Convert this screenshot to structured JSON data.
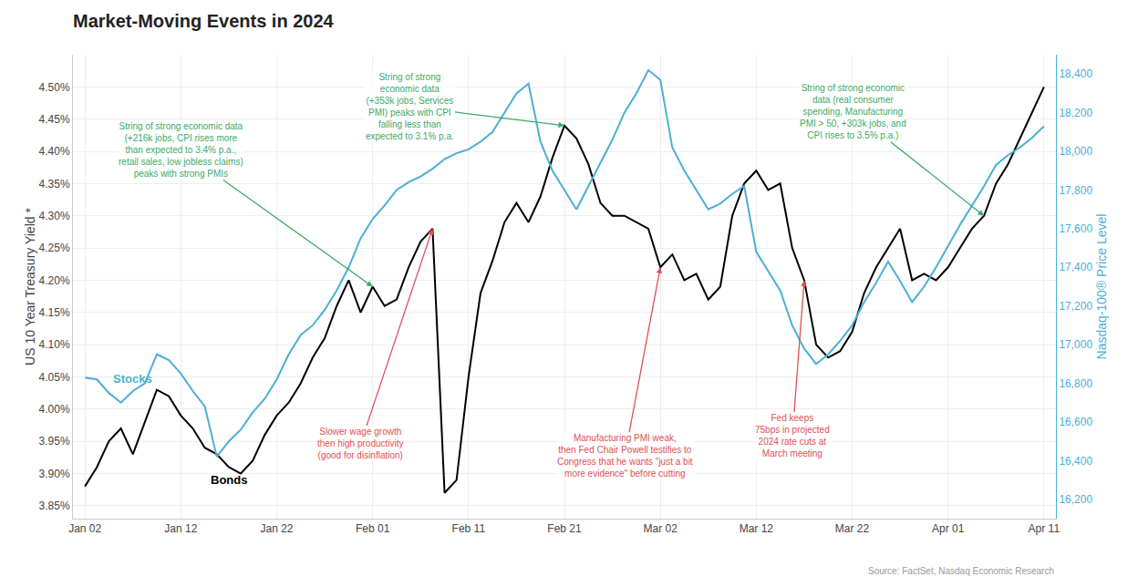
{
  "chart_data": {
    "type": "line",
    "title": "Market-Moving Events in 2024",
    "categories": [
      "Jan 02",
      null,
      null,
      null,
      null,
      null,
      null,
      null,
      "Jan 12",
      null,
      null,
      null,
      null,
      null,
      null,
      null,
      "Jan 22",
      null,
      null,
      null,
      null,
      null,
      null,
      null,
      "Feb 01",
      null,
      null,
      null,
      null,
      null,
      null,
      null,
      "Feb 11",
      null,
      null,
      null,
      null,
      null,
      null,
      null,
      "Feb 21",
      null,
      null,
      null,
      null,
      null,
      null,
      null,
      "Mar 02",
      null,
      null,
      null,
      null,
      null,
      null,
      null,
      "Mar 12",
      null,
      null,
      null,
      null,
      null,
      null,
      null,
      "Mar 22",
      null,
      null,
      null,
      null,
      null,
      null,
      null,
      "Apr 01",
      null,
      null,
      null,
      null,
      null,
      null,
      null,
      "Apr 11"
    ],
    "series": [
      {
        "name": "Bonds",
        "color": "#000000",
        "values": [
          3.88,
          3.91,
          3.95,
          3.97,
          3.93,
          3.98,
          4.03,
          4.02,
          3.99,
          3.97,
          3.94,
          3.93,
          3.91,
          3.9,
          3.92,
          3.96,
          3.99,
          4.01,
          4.04,
          4.08,
          4.11,
          4.16,
          4.2,
          4.15,
          4.19,
          4.16,
          4.17,
          4.22,
          4.26,
          4.28,
          3.87,
          3.89,
          4.05,
          4.18,
          4.23,
          4.29,
          4.32,
          4.29,
          4.33,
          4.39,
          4.44,
          4.42,
          4.38,
          4.32,
          4.3,
          4.3,
          4.29,
          4.28,
          4.22,
          4.24,
          4.2,
          4.21,
          4.17,
          4.19,
          4.3,
          4.35,
          4.37,
          4.34,
          4.35,
          4.25,
          4.2,
          4.1,
          4.08,
          4.09,
          4.12,
          4.18,
          4.22,
          4.25,
          4.28,
          4.2,
          4.21,
          4.2,
          4.22,
          4.25,
          4.28,
          4.3,
          4.35,
          4.38,
          4.42,
          4.46,
          4.5
        ]
      },
      {
        "name": "Stocks",
        "color": "#4bafd6",
        "axis": "y2",
        "values": [
          16830,
          16820,
          16750,
          16700,
          16760,
          16800,
          16950,
          16920,
          16850,
          16760,
          16680,
          16420,
          16500,
          16560,
          16650,
          16720,
          16820,
          16950,
          17050,
          17100,
          17180,
          17280,
          17400,
          17550,
          17650,
          17720,
          17800,
          17840,
          17870,
          17910,
          17960,
          17990,
          18010,
          18050,
          18100,
          18200,
          18300,
          18350,
          18050,
          17900,
          17800,
          17700,
          17820,
          17940,
          18060,
          18200,
          18300,
          18420,
          18370,
          18020,
          17900,
          17800,
          17700,
          17730,
          17780,
          17820,
          17480,
          17380,
          17280,
          17100,
          16980,
          16900,
          16950,
          17020,
          17100,
          17220,
          17320,
          17430,
          17330,
          17220,
          17300,
          17400,
          17510,
          17620,
          17720,
          17820,
          17930,
          17980,
          18020,
          18070,
          18130
        ]
      }
    ],
    "ylabel": "US 10 Year Treasury Yield *",
    "y2label": "Nasdaq-100® Price Level",
    "ylim": [
      3.83,
      4.55
    ],
    "yticks": [
      {
        "value": 3.85,
        "label": "3.85%"
      },
      {
        "value": 3.9,
        "label": "3.90%"
      },
      {
        "value": 3.95,
        "label": "3.95%"
      },
      {
        "value": 4.0,
        "label": "4.00%"
      },
      {
        "value": 4.05,
        "label": "4.05%"
      },
      {
        "value": 4.1,
        "label": "4.10%"
      },
      {
        "value": 4.15,
        "label": "4.15%"
      },
      {
        "value": 4.2,
        "label": "4.20%"
      },
      {
        "value": 4.25,
        "label": "4.25%"
      },
      {
        "value": 4.3,
        "label": "4.30%"
      },
      {
        "value": 4.35,
        "label": "4.35%"
      },
      {
        "value": 4.4,
        "label": "4.40%"
      },
      {
        "value": 4.45,
        "label": "4.45%"
      },
      {
        "value": 4.5,
        "label": "4.50%"
      }
    ],
    "y2lim": [
      16100,
      18500
    ],
    "y2ticks": [
      {
        "value": 16200,
        "label": "16,200"
      },
      {
        "value": 16400,
        "label": "16,400"
      },
      {
        "value": 16600,
        "label": "16,600"
      },
      {
        "value": 16800,
        "label": "16,800"
      },
      {
        "value": 17000,
        "label": "17,000"
      },
      {
        "value": 17200,
        "label": "17,200"
      },
      {
        "value": 17400,
        "label": "17,400"
      },
      {
        "value": 17600,
        "label": "17,600"
      },
      {
        "value": 17800,
        "label": "17,800"
      },
      {
        "value": 18000,
        "label": "18,000"
      },
      {
        "value": 18200,
        "label": "18,200"
      },
      {
        "value": 18400,
        "label": "18,400"
      }
    ],
    "grid": true,
    "annotations": [
      {
        "text": "String of strong economic data\n(+216k jobs, CPI rises more\nthan expected to 3.4% p.a.,\nretail sales, low jobless claims)\npeaks with strong PMIs",
        "color": "#3aaa6a"
      },
      {
        "text": "String of strong\neconomic data\n(+353k jobs, Services\nPMI) peaks with CPI\nfalling less than\nexpected to 3.1% p.a.",
        "color": "#3aaa6a"
      },
      {
        "text": "String of strong economic\ndata (real consumer\nspending, Manufacturing\nPMI > 50, +303k jobs, and\nCPI rises to 3.5% p.a.)",
        "color": "#3aaa6a"
      },
      {
        "text": "Slower wage growth\nthen high productivity\n(good for disinflation)",
        "color": "#e05050"
      },
      {
        "text": "Manufacturing PMI weak,\nthen Fed Chair Powell testifies to\nCongress that he wants \"just a bit\nmore evidence\" before cutting",
        "color": "#e05050"
      },
      {
        "text": "Fed keeps\n75bps in projected\n2024 rate cuts at\nMarch meeting",
        "color": "#e05050"
      }
    ],
    "source": "Source: FactSet, Nasdaq Economic Research"
  }
}
